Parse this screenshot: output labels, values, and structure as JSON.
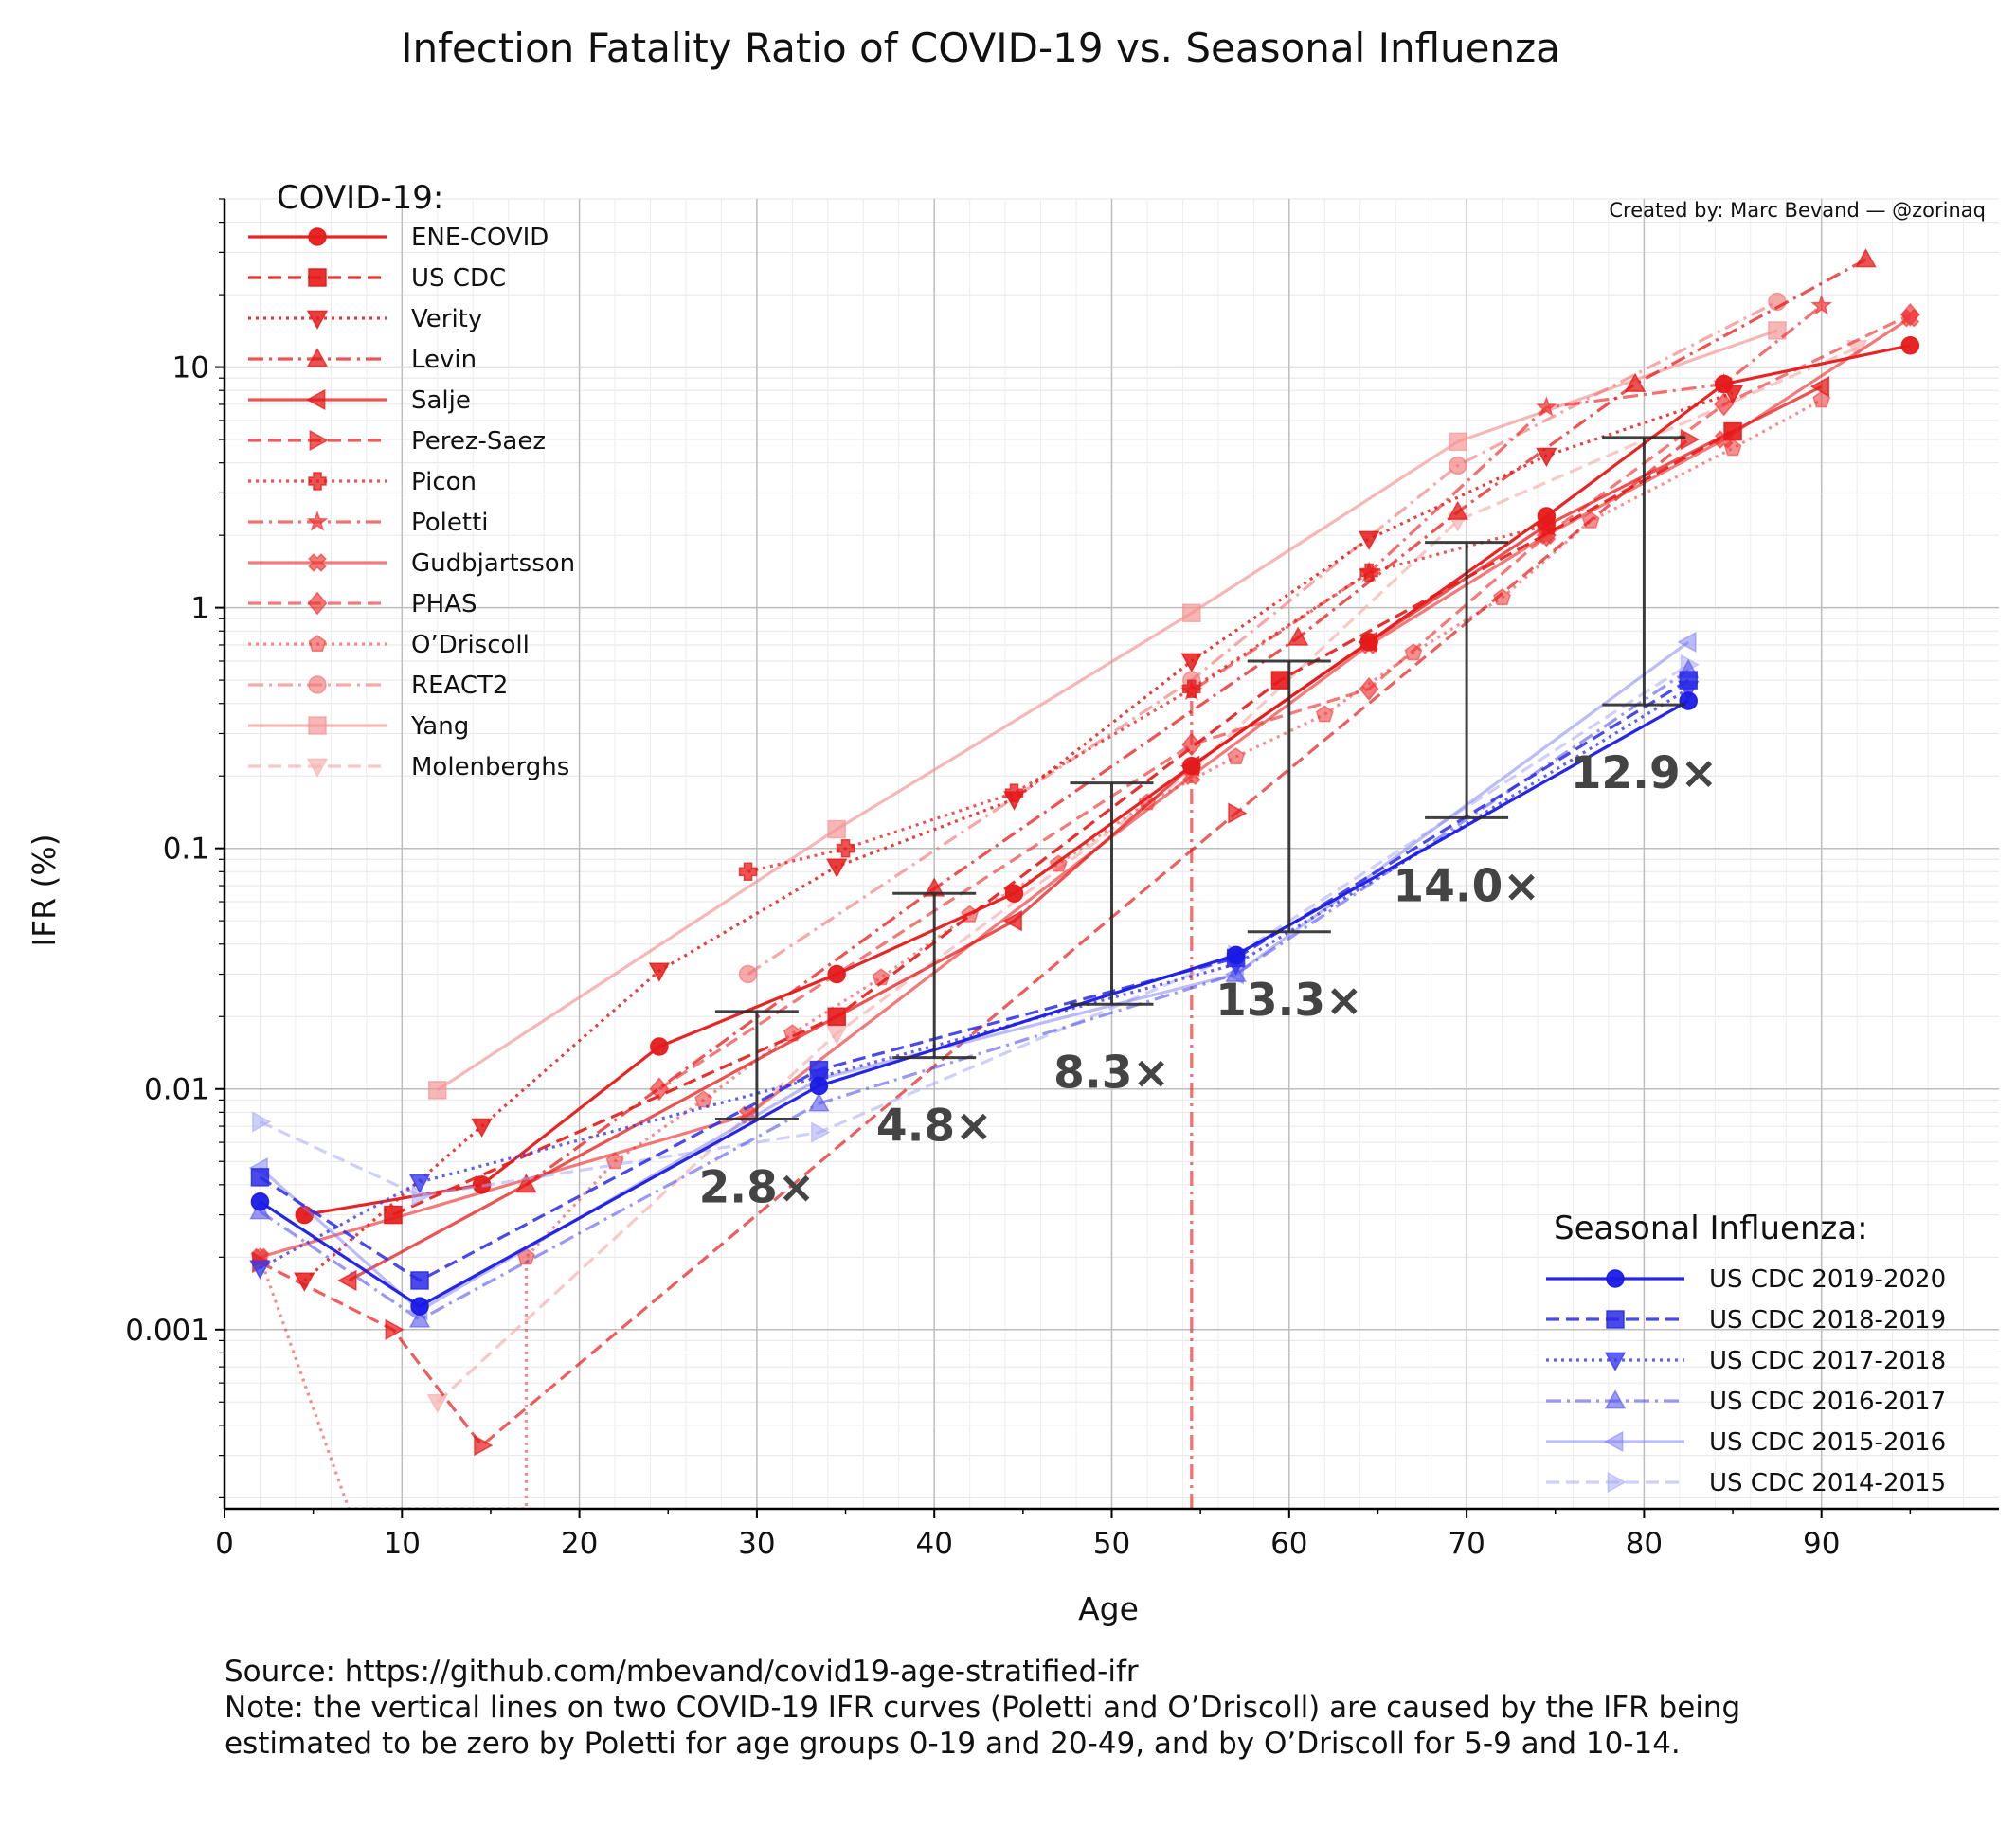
{
  "chart_data": {
    "type": "line",
    "title": "Infection Fatality Ratio of COVID-19 vs. Seasonal Influenza",
    "credit": "Created by: Marc Bevand — @zorinaq",
    "xlabel": "Age",
    "ylabel": "IFR (%)",
    "xlim": [
      0,
      100
    ],
    "ylim": [
      0.00018,
      50
    ],
    "yscale": "log",
    "grid": true,
    "x_ticks": [
      0,
      10,
      20,
      30,
      40,
      50,
      60,
      70,
      80,
      90
    ],
    "y_ticks": [
      {
        "value": 0.001,
        "label": "0.001"
      },
      {
        "value": 0.01,
        "label": "0.01"
      },
      {
        "value": 0.1,
        "label": "0.1"
      },
      {
        "value": 1,
        "label": "1"
      },
      {
        "value": 10,
        "label": "10"
      }
    ],
    "legend_covid_title": "COVID-19:",
    "legend_covid_placement": "top-left",
    "legend_flu_title": "Seasonal Influenza:",
    "legend_flu_placement": "bottom-right",
    "covid_series": [
      {
        "name": "ENE-COVID",
        "color": "#e51a1a",
        "dash": "solid",
        "marker": "circle",
        "opacity": 0.95,
        "x": [
          4.5,
          14.5,
          24.5,
          34.5,
          44.5,
          54.5,
          64.5,
          74.5,
          84.5,
          95
        ],
        "y": [
          0.003,
          0.004,
          0.015,
          0.03,
          0.065,
          0.22,
          0.72,
          2.4,
          8.5,
          12.3
        ]
      },
      {
        "name": "US CDC",
        "color": "#e51a1a",
        "dash": "dashed",
        "marker": "square",
        "opacity": 0.9,
        "x": [
          9.5,
          34.5,
          59.5,
          85
        ],
        "y": [
          0.003,
          0.02,
          0.5,
          5.4
        ]
      },
      {
        "name": "Verity",
        "color": "#e51a1a",
        "dash": "dotted",
        "marker": "triangle-down",
        "opacity": 0.85,
        "x": [
          4.5,
          14.5,
          24.5,
          34.5,
          44.5,
          54.5,
          64.5,
          74.5,
          85
        ],
        "y": [
          0.0016,
          0.007,
          0.031,
          0.084,
          0.16,
          0.6,
          1.93,
          4.28,
          7.8
        ]
      },
      {
        "name": "Levin",
        "color": "#e51a1a",
        "dash": "dashdot",
        "marker": "triangle-up",
        "opacity": 0.75,
        "x": [
          17,
          40,
          60.5,
          69.5,
          79.5,
          92.5
        ],
        "y": [
          0.004,
          0.068,
          0.75,
          2.5,
          8.5,
          28
        ]
      },
      {
        "name": "Salje",
        "color": "#e51a1a",
        "dash": "solid",
        "marker": "triangle-left",
        "opacity": 0.75,
        "x": [
          7,
          44.5,
          54.5,
          64.5,
          74.5,
          90
        ],
        "y": [
          0.0016,
          0.05,
          0.22,
          0.72,
          2.2,
          8.3
        ]
      },
      {
        "name": "Perez-Saez",
        "color": "#e51a1a",
        "dash": "dashed",
        "marker": "triangle-right",
        "opacity": 0.7,
        "x": [
          2,
          9.5,
          14.5,
          57,
          82.5
        ],
        "y": [
          0.0019,
          0.001,
          0.00033,
          0.14,
          5.0
        ]
      },
      {
        "name": "Picon",
        "color": "#e51a1a",
        "dash": "dotted",
        "marker": "plus",
        "opacity": 0.75,
        "x": [
          29.5,
          35,
          44.5,
          54.5,
          64.5,
          74.5
        ],
        "y": [
          0.08,
          0.1,
          0.17,
          0.46,
          1.4,
          2.2
        ]
      },
      {
        "name": "Poletti",
        "color": "#ee3333",
        "dash": "dashdot",
        "marker": "star",
        "opacity": 0.7,
        "x": [
          54.5,
          54.5,
          64.5,
          74.5,
          84.5,
          90
        ],
        "y": [
          0.00018,
          0.45,
          1.4,
          6.8,
          8.5,
          18
        ]
      },
      {
        "name": "Gudbjartsson",
        "color": "#ee3333",
        "dash": "solid",
        "marker": "x",
        "opacity": 0.65,
        "x": [
          2,
          29.5,
          54.5,
          64.5,
          74.5,
          84.5,
          95
        ],
        "y": [
          0.002,
          0.0078,
          0.2,
          0.7,
          2.0,
          5.0,
          16
        ]
      },
      {
        "name": "PHAS",
        "color": "#ee3333",
        "dash": "dashed",
        "marker": "diamond",
        "opacity": 0.65,
        "x": [
          24.5,
          54.5,
          64.5,
          74.5,
          84.5,
          95
        ],
        "y": [
          0.01,
          0.27,
          0.46,
          2.0,
          7.0,
          16.5
        ]
      },
      {
        "name": "O’Driscoll",
        "color": "#ee3333",
        "dash": "dotted",
        "marker": "pentagon",
        "opacity": 0.55,
        "x": [
          2,
          7,
          12,
          17,
          17,
          22,
          27,
          32,
          37,
          42,
          47,
          52,
          57,
          62,
          67,
          72,
          77,
          85,
          90
        ],
        "y": [
          0.002,
          0.00018,
          0.00018,
          0.00018,
          0.002,
          0.005,
          0.009,
          0.017,
          0.029,
          0.053,
          0.086,
          0.155,
          0.24,
          0.36,
          0.65,
          1.1,
          2.3,
          4.6,
          7.3
        ]
      },
      {
        "name": "REACT2",
        "color": "#f07070",
        "dash": "dashdot",
        "marker": "circle",
        "opacity": 0.6,
        "x": [
          29.5,
          54.5,
          69.5,
          87.5
        ],
        "y": [
          0.03,
          0.5,
          3.9,
          18.7
        ]
      },
      {
        "name": "Yang",
        "color": "#f49090",
        "dash": "solid",
        "marker": "square",
        "opacity": 0.65,
        "x": [
          12,
          34.5,
          54.5,
          69.5,
          87.5
        ],
        "y": [
          0.0099,
          0.12,
          0.95,
          4.9,
          14.2
        ]
      },
      {
        "name": "Molenberghs",
        "color": "#f7b0b0",
        "dash": "dashed",
        "marker": "triangle-down",
        "opacity": 0.7,
        "x": [
          12,
          34.5,
          54.5,
          69.5,
          92
        ],
        "y": [
          0.0005,
          0.017,
          0.21,
          2.3,
          12
        ]
      }
    ],
    "flu_series": [
      {
        "name": "US CDC 2019-2020",
        "color": "#1a1ae6",
        "dash": "solid",
        "marker": "circle",
        "opacity": 0.95,
        "x": [
          2,
          11,
          33.5,
          57,
          82.5
        ],
        "y": [
          0.0034,
          0.00125,
          0.0103,
          0.036,
          0.41
        ]
      },
      {
        "name": "US CDC 2018-2019",
        "color": "#2a2ae6",
        "dash": "dashed",
        "marker": "square",
        "opacity": 0.85,
        "x": [
          2,
          11,
          33.5,
          57,
          82.5
        ],
        "y": [
          0.0043,
          0.0016,
          0.012,
          0.035,
          0.5
        ]
      },
      {
        "name": "US CDC 2017-2018",
        "color": "#3a3aee",
        "dash": "dotted",
        "marker": "triangle-down",
        "opacity": 0.8,
        "x": [
          2,
          11,
          33.5,
          57,
          82.5
        ],
        "y": [
          0.0018,
          0.0041,
          0.0112,
          0.033,
          0.46
        ]
      },
      {
        "name": "US CDC 2016-2017",
        "color": "#5555ee",
        "dash": "dashdot",
        "marker": "triangle-up",
        "opacity": 0.6,
        "x": [
          2,
          11,
          33.5,
          57,
          82.5
        ],
        "y": [
          0.0031,
          0.0011,
          0.0087,
          0.03,
          0.55
        ]
      },
      {
        "name": "US CDC 2015-2016",
        "color": "#7a7af2",
        "dash": "solid",
        "marker": "triangle-left",
        "opacity": 0.5,
        "x": [
          2,
          11,
          33.5,
          57,
          82.5
        ],
        "y": [
          0.0047,
          0.0012,
          0.011,
          0.03,
          0.72
        ]
      },
      {
        "name": "US CDC 2014-2015",
        "color": "#a8a8f7",
        "dash": "dashed",
        "marker": "triangle-right",
        "opacity": 0.55,
        "x": [
          2,
          11,
          33.5,
          57,
          82.5
        ],
        "y": [
          0.0073,
          0.0036,
          0.0066,
          0.036,
          0.58
        ]
      }
    ],
    "ranges": [
      {
        "x": 30,
        "low": 0.0075,
        "high": 0.021,
        "ratio": "2.8×"
      },
      {
        "x": 40,
        "low": 0.0135,
        "high": 0.065,
        "ratio": "4.8×"
      },
      {
        "x": 50,
        "low": 0.0225,
        "high": 0.187,
        "ratio": "8.3×"
      },
      {
        "x": 60,
        "low": 0.045,
        "high": 0.6,
        "ratio": "13.3×"
      },
      {
        "x": 70,
        "low": 0.134,
        "high": 1.87,
        "ratio": "14.0×"
      },
      {
        "x": 80,
        "low": 0.395,
        "high": 5.1,
        "ratio": "12.9×"
      }
    ]
  },
  "footer": {
    "source": "Source: https://github.com/mbevand/covid19-age-stratified-ifr",
    "note_line1": "Note: the vertical lines on two COVID-19 IFR curves (Poletti and O’Driscoll) are caused by the IFR being",
    "note_line2": "estimated to be zero by Poletti for age groups 0-19 and 20-49, and by O’Driscoll for 5-9 and 10-14."
  }
}
